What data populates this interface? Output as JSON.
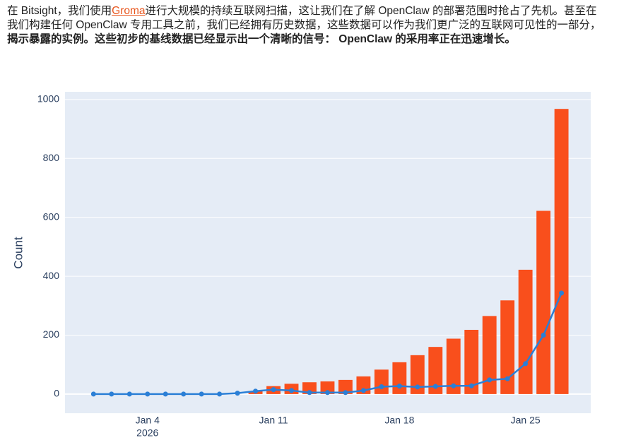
{
  "paragraph": {
    "before_link": "在 Bitsight，我们使用",
    "link": "Groma",
    "after_link": "进行大规模的持续互联网扫描，这让我们在了解 OpenClaw 的部署范围时抢占了先机。甚至在我们构建任何 OpenClaw 专用工具之前，我们已经拥有历史数据，这些数据可以作为我们更广泛的互联网可见性的一部分，",
    "bold": "揭示暴露的实例。这些初步的基线数据已经显示出一个清晰的信号： OpenClaw 的采用率正在迅速增长。"
  },
  "chart_data": {
    "type": "bar-line",
    "y_label": "Count",
    "x": [
      "2026-01-01",
      "2026-01-02",
      "2026-01-03",
      "2026-01-04",
      "2026-01-05",
      "2026-01-06",
      "2026-01-07",
      "2026-01-08",
      "2026-01-09",
      "2026-01-10",
      "2026-01-11",
      "2026-01-12",
      "2026-01-13",
      "2026-01-14",
      "2026-01-15",
      "2026-01-16",
      "2026-01-17",
      "2026-01-18",
      "2026-01-19",
      "2026-01-20",
      "2026-01-21",
      "2026-01-22",
      "2026-01-23",
      "2026-01-24",
      "2026-01-25",
      "2026-01-26",
      "2026-01-27"
    ],
    "series": [
      {
        "type": "bar",
        "color": "#f94f1c",
        "values": [
          0,
          0,
          0,
          0,
          0,
          0,
          0,
          0,
          0,
          10,
          27,
          35,
          40,
          43,
          48,
          60,
          83,
          108,
          132,
          160,
          188,
          218,
          265,
          318,
          422,
          622,
          968
        ]
      },
      {
        "type": "line",
        "color": "#2b7fd6",
        "values": [
          0,
          0,
          0,
          0,
          0,
          0,
          0,
          0,
          3,
          10,
          15,
          12,
          5,
          5,
          5,
          12,
          25,
          27,
          24,
          26,
          28,
          28,
          48,
          52,
          103,
          200,
          343
        ]
      }
    ],
    "xlim": [
      "2025-12-30T10:00",
      "2026-01-28T15:00"
    ],
    "xticks": [
      {
        "value": "2026-01-04",
        "label": "Jan 4"
      },
      {
        "value": "2026-01-11",
        "label": "Jan 11"
      },
      {
        "value": "2026-01-18",
        "label": "Jan 18"
      },
      {
        "value": "2026-01-25",
        "label": "Jan 25"
      }
    ],
    "xtick_year": "2026",
    "ylim": [
      -65,
      1026
    ],
    "yticks": [
      0,
      200,
      400,
      600,
      800,
      1000
    ],
    "grid": true
  }
}
